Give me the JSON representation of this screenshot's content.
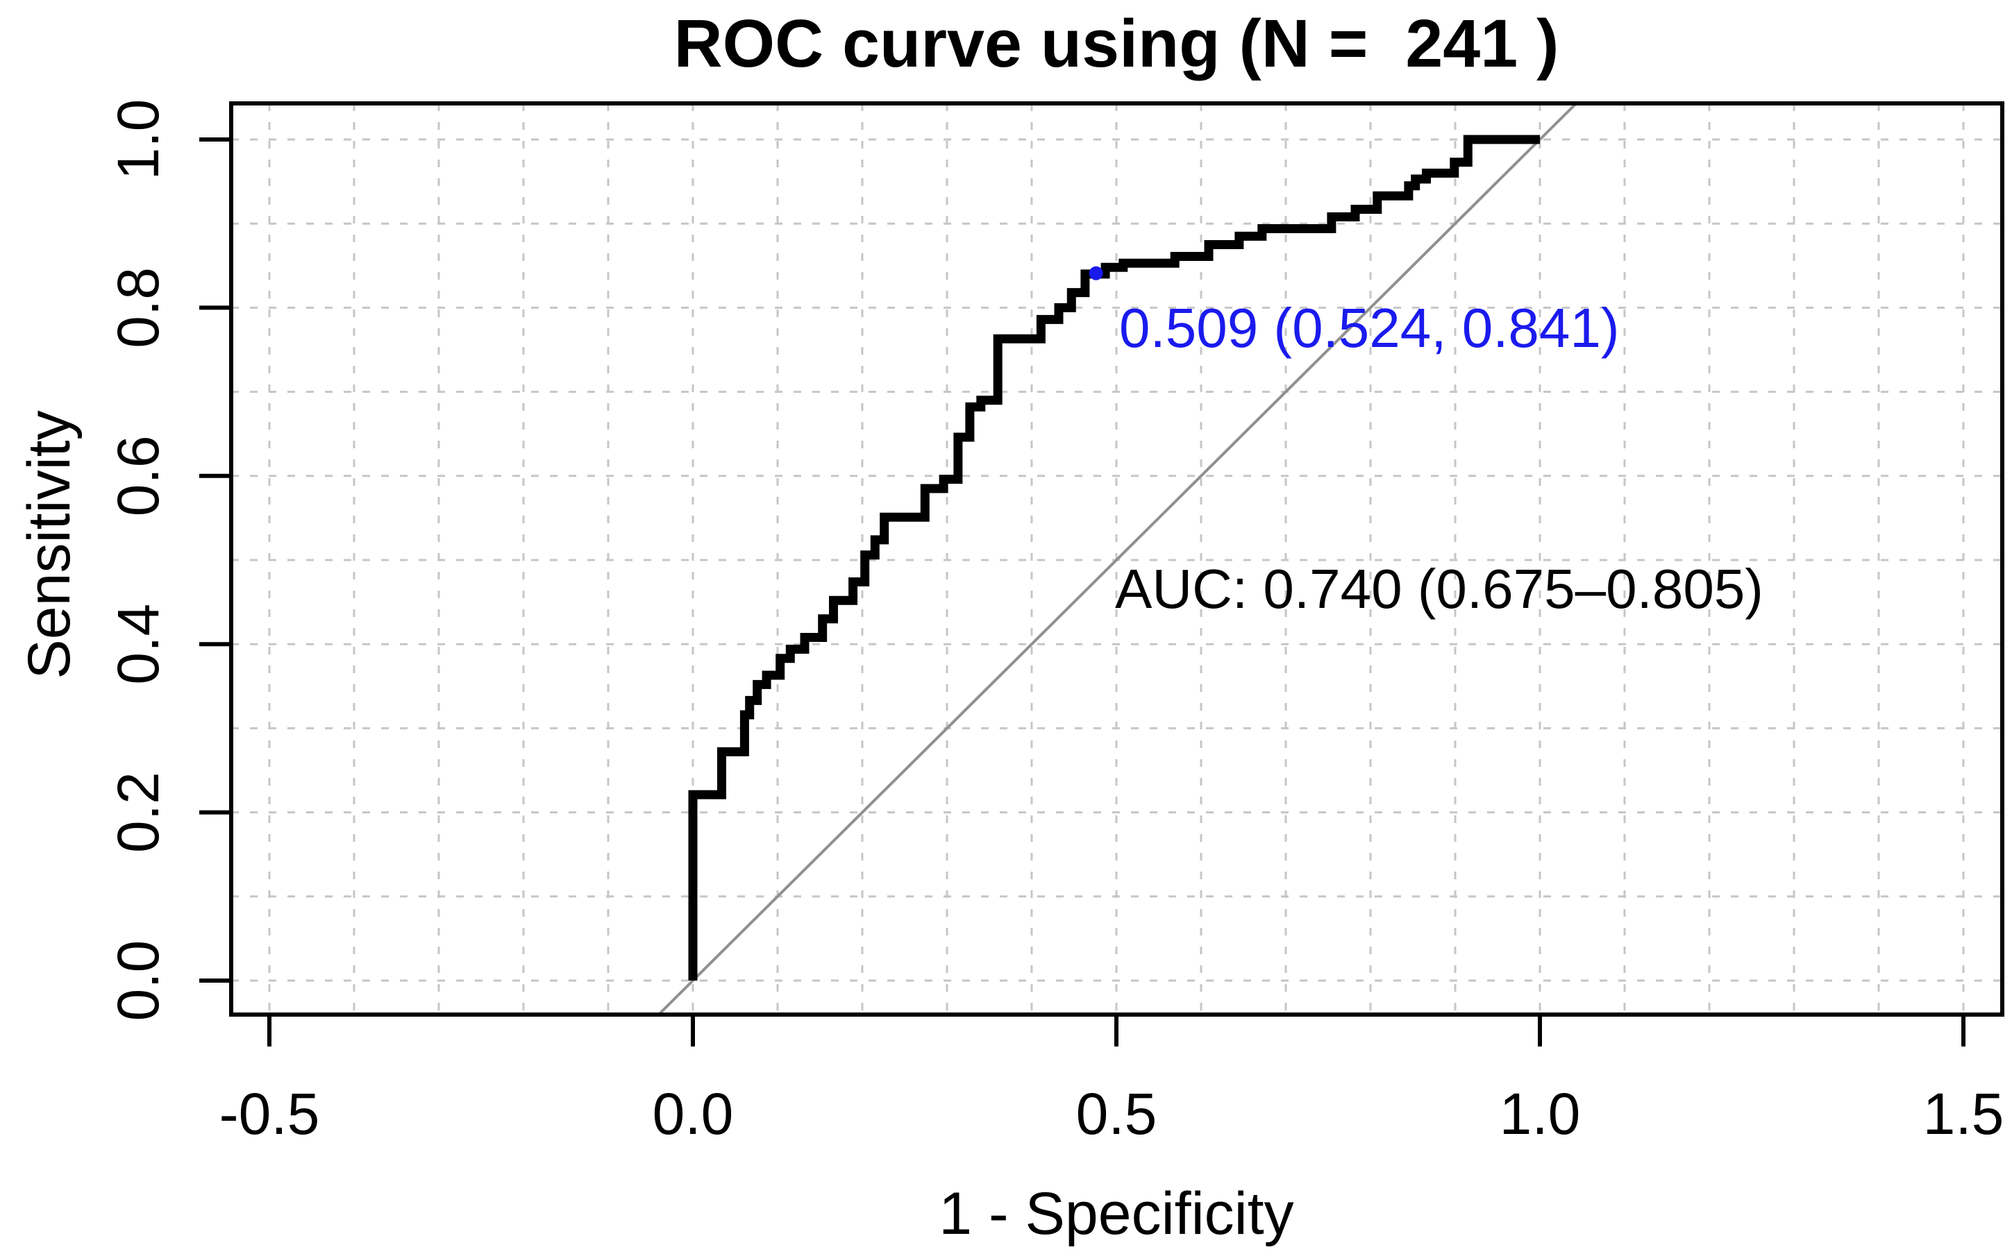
{
  "colors": {
    "background": "#ffffff",
    "curve": "#000000",
    "reference_line": "#909090",
    "grid": "#c6c6c6",
    "axis": "#000000",
    "text": "#000000",
    "threshold": "#1a1aee"
  },
  "chart_data": {
    "type": "line",
    "subtype": "roc-step-curve",
    "title": "ROC curve using (N =  241 )",
    "xlabel": "1 - Specificity",
    "ylabel": "Sensitivity",
    "n": 241,
    "xlim": [
      -0.5,
      1.5
    ],
    "ylim": [
      0.0,
      1.0
    ],
    "x_ticks": {
      "values": [
        -0.5,
        0.0,
        0.5,
        1.0,
        1.5
      ],
      "labels": [
        "-0.5",
        "0.0",
        "0.5",
        "1.0",
        "1.5"
      ]
    },
    "y_ticks": {
      "values": [
        0.0,
        0.2,
        0.4,
        0.6,
        0.8,
        1.0
      ],
      "labels": [
        "0.0",
        "0.2",
        "0.4",
        "0.6",
        "0.8",
        "1.0"
      ]
    },
    "grid": {
      "on": true,
      "x_step": 0.1,
      "y_step": 0.1,
      "style": "dashed",
      "x_range": [
        -0.5,
        1.5
      ],
      "y_range": [
        0.0,
        1.0
      ]
    },
    "legend": {
      "on": false
    },
    "reference_line": {
      "from": [
        0,
        0
      ],
      "to": [
        1,
        1
      ],
      "style": "thin-gray-diagonal"
    },
    "auc": {
      "value": 0.74,
      "ci_low": 0.675,
      "ci_high": 0.805,
      "label": "AUC: 0.740 (0.675–0.805)"
    },
    "best_threshold": {
      "threshold": 0.509,
      "specificity": 0.524,
      "sensitivity": 0.841,
      "x": 0.476,
      "y": 0.841,
      "label": "0.509 (0.524, 0.841)"
    },
    "series": [
      {
        "name": "ROC curve",
        "draw": "step-vertices",
        "points": [
          [
            0.0,
            0.0
          ],
          [
            0.0,
            0.221
          ],
          [
            0.034,
            0.221
          ],
          [
            0.034,
            0.272
          ],
          [
            0.061,
            0.272
          ],
          [
            0.061,
            0.316
          ],
          [
            0.067,
            0.316
          ],
          [
            0.067,
            0.333
          ],
          [
            0.076,
            0.333
          ],
          [
            0.076,
            0.352
          ],
          [
            0.087,
            0.352
          ],
          [
            0.087,
            0.363
          ],
          [
            0.103,
            0.363
          ],
          [
            0.103,
            0.383
          ],
          [
            0.115,
            0.383
          ],
          [
            0.115,
            0.394
          ],
          [
            0.132,
            0.394
          ],
          [
            0.132,
            0.408
          ],
          [
            0.153,
            0.408
          ],
          [
            0.153,
            0.43
          ],
          [
            0.166,
            0.43
          ],
          [
            0.166,
            0.452
          ],
          [
            0.189,
            0.452
          ],
          [
            0.189,
            0.474
          ],
          [
            0.203,
            0.474
          ],
          [
            0.203,
            0.506
          ],
          [
            0.215,
            0.506
          ],
          [
            0.215,
            0.524
          ],
          [
            0.226,
            0.524
          ],
          [
            0.226,
            0.551
          ],
          [
            0.274,
            0.551
          ],
          [
            0.274,
            0.585
          ],
          [
            0.296,
            0.585
          ],
          [
            0.296,
            0.596
          ],
          [
            0.313,
            0.596
          ],
          [
            0.313,
            0.646
          ],
          [
            0.327,
            0.646
          ],
          [
            0.327,
            0.682
          ],
          [
            0.34,
            0.682
          ],
          [
            0.34,
            0.69
          ],
          [
            0.36,
            0.69
          ],
          [
            0.36,
            0.763
          ],
          [
            0.411,
            0.763
          ],
          [
            0.411,
            0.786
          ],
          [
            0.432,
            0.786
          ],
          [
            0.432,
            0.8
          ],
          [
            0.447,
            0.8
          ],
          [
            0.447,
            0.818
          ],
          [
            0.463,
            0.818
          ],
          [
            0.463,
            0.84
          ],
          [
            0.487,
            0.84
          ],
          [
            0.487,
            0.848
          ],
          [
            0.508,
            0.848
          ],
          [
            0.508,
            0.853
          ],
          [
            0.569,
            0.853
          ],
          [
            0.569,
            0.861
          ],
          [
            0.609,
            0.861
          ],
          [
            0.609,
            0.875
          ],
          [
            0.645,
            0.875
          ],
          [
            0.645,
            0.885
          ],
          [
            0.672,
            0.885
          ],
          [
            0.672,
            0.894
          ],
          [
            0.754,
            0.894
          ],
          [
            0.754,
            0.908
          ],
          [
            0.782,
            0.908
          ],
          [
            0.782,
            0.917
          ],
          [
            0.808,
            0.917
          ],
          [
            0.808,
            0.933
          ],
          [
            0.845,
            0.933
          ],
          [
            0.845,
            0.945
          ],
          [
            0.853,
            0.945
          ],
          [
            0.853,
            0.953
          ],
          [
            0.866,
            0.953
          ],
          [
            0.866,
            0.96
          ],
          [
            0.899,
            0.96
          ],
          [
            0.899,
            0.973
          ],
          [
            0.915,
            0.973
          ],
          [
            0.915,
            1.0
          ],
          [
            1.0,
            1.0
          ]
        ]
      }
    ]
  }
}
